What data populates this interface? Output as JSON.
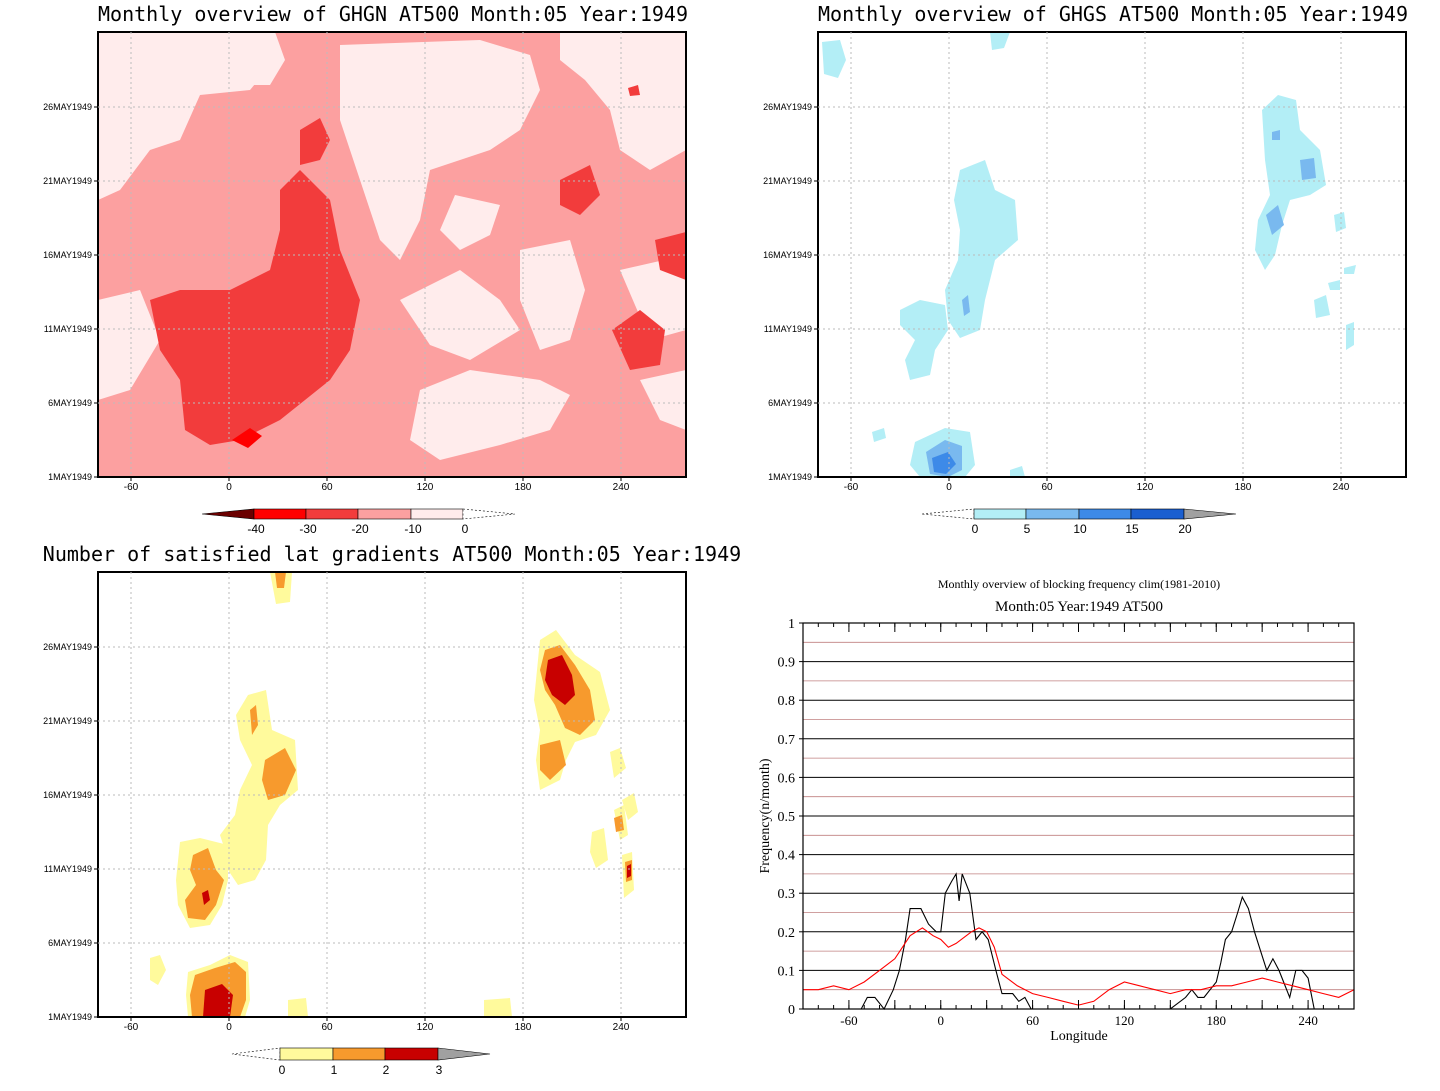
{
  "panels": {
    "ghgn": {
      "title": "Monthly overview of GHGN AT500 Month:05 Year:1949",
      "colorbar": [
        "-40",
        "-30",
        "-20",
        "-10",
        "0"
      ]
    },
    "ghgs": {
      "title": "Monthly overview of GHGS AT500 Month:05 Year:1949",
      "colorbar": [
        "0",
        "5",
        "10",
        "15",
        "20"
      ]
    },
    "gradients": {
      "title": "Number of satisfied lat gradients AT500 Month:05 Year:1949",
      "colorbar": [
        "0",
        "1",
        "2",
        "3"
      ]
    },
    "frequency": {
      "title": "Monthly overview of blocking frequency clim(1981-2010)",
      "subtitle": "Month:05 Year:1949  AT500"
    }
  },
  "map_axes": {
    "y_ticks": [
      "1MAY1949",
      "6MAY1949",
      "11MAY1949",
      "16MAY1949",
      "21MAY1949",
      "26MAY1949"
    ],
    "x_ticks": [
      "-60",
      "0",
      "60",
      "120",
      "180",
      "240"
    ]
  },
  "chart_data": [
    {
      "type": "heatmap",
      "title": "Monthly overview of GHGN AT500 Month:05 Year:1949",
      "x_range": [
        -80,
        280
      ],
      "y_range": [
        "1MAY1949",
        "31MAY1949"
      ],
      "levels": [
        -40,
        -30,
        -20,
        -10,
        0
      ],
      "colors": [
        "#6b0000",
        "#ff0000",
        "#f23c3c",
        "#fca0a0",
        "#ffecec"
      ]
    },
    {
      "type": "heatmap",
      "title": "Monthly overview of GHGS AT500 Month:05 Year:1949",
      "x_range": [
        -80,
        280
      ],
      "y_range": [
        "1MAY1949",
        "31MAY1949"
      ],
      "levels": [
        0,
        5,
        10,
        15,
        20
      ],
      "colors": [
        "#b3eef6",
        "#79b9ef",
        "#3d8ae8",
        "#1b5fd0",
        "#a0a0a0"
      ]
    },
    {
      "type": "heatmap",
      "title": "Number of satisfied lat gradients AT500 Month:05 Year:1949",
      "x_range": [
        -80,
        280
      ],
      "y_range": [
        "1MAY1949",
        "31MAY1949"
      ],
      "levels": [
        0,
        1,
        2,
        3
      ],
      "colors": [
        "#fffa9c",
        "#f79a2d",
        "#c80000",
        "#a0a0a0"
      ]
    },
    {
      "type": "line",
      "title": "Monthly overview of blocking frequency clim(1981-2010)",
      "subtitle": "Month:05 Year:1949  AT500",
      "xlabel": "Longitude",
      "ylabel": "Frequency(n/month)",
      "xlim": [
        -90,
        270
      ],
      "ylim": [
        0,
        1
      ],
      "x_ticks": [
        "-60",
        "0",
        "60",
        "120",
        "180",
        "240"
      ],
      "y_ticks": [
        "0",
        "0.1",
        "0.2",
        "0.3",
        "0.4",
        "0.5",
        "0.6",
        "0.7",
        "0.8",
        "0.9",
        "1"
      ],
      "series": [
        {
          "color": "#000000",
          "x": [
            -90,
            -52,
            -48,
            -43,
            -37,
            -31,
            -27,
            -23,
            -20,
            -13,
            -8,
            -3,
            0,
            3,
            7,
            10,
            12,
            14,
            16,
            19,
            23,
            27,
            31,
            36,
            40,
            44,
            47,
            51,
            55,
            59,
            63,
            70,
            90,
            110,
            130,
            150,
            160,
            164,
            168,
            172,
            176,
            180,
            183,
            186,
            190,
            194,
            197,
            201,
            205,
            209,
            213,
            217,
            221,
            224,
            228,
            232,
            236,
            240,
            244,
            248,
            252,
            255,
            258,
            262,
            270
          ],
          "y": [
            0,
            0,
            0.03,
            0.03,
            0,
            0.05,
            0.1,
            0.18,
            0.26,
            0.26,
            0.22,
            0.2,
            0.2,
            0.3,
            0.33,
            0.35,
            0.28,
            0.35,
            0.33,
            0.3,
            0.18,
            0.2,
            0.18,
            0.1,
            0.04,
            0.04,
            0.04,
            0.02,
            0.03,
            0,
            0,
            0,
            0,
            0,
            0,
            0,
            0.03,
            0.05,
            0.03,
            0.03,
            0.05,
            0.07,
            0.12,
            0.18,
            0.2,
            0.25,
            0.29,
            0.26,
            0.2,
            0.15,
            0.1,
            0.13,
            0.1,
            0.07,
            0.03,
            0.1,
            0.1,
            0.08,
            0,
            0,
            0,
            0,
            0,
            0,
            0
          ]
        },
        {
          "color": "#ff0000",
          "x": [
            -90,
            -80,
            -70,
            -60,
            -50,
            -40,
            -30,
            -20,
            -12,
            -5,
            0,
            5,
            10,
            20,
            25,
            30,
            35,
            40,
            50,
            60,
            70,
            80,
            90,
            100,
            110,
            120,
            130,
            140,
            150,
            160,
            170,
            180,
            190,
            200,
            210,
            220,
            230,
            240,
            250,
            260,
            270
          ],
          "y": [
            0.05,
            0.05,
            0.06,
            0.05,
            0.07,
            0.1,
            0.13,
            0.19,
            0.21,
            0.19,
            0.18,
            0.16,
            0.17,
            0.2,
            0.21,
            0.2,
            0.16,
            0.09,
            0.06,
            0.04,
            0.03,
            0.02,
            0.01,
            0.02,
            0.05,
            0.07,
            0.06,
            0.05,
            0.04,
            0.05,
            0.05,
            0.06,
            0.06,
            0.07,
            0.08,
            0.07,
            0.06,
            0.05,
            0.04,
            0.03,
            0.05
          ]
        }
      ]
    }
  ]
}
